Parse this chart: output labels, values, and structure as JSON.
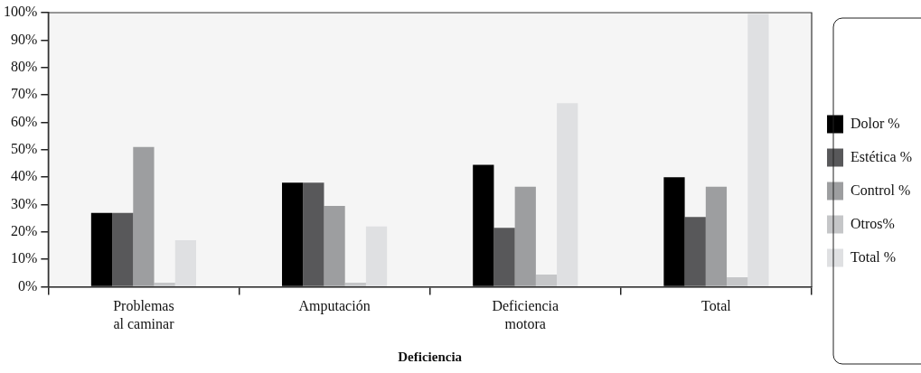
{
  "chart_data": {
    "type": "bar",
    "xlabel": "Deficiencia",
    "categories": [
      "Problemas\nal caminar",
      "Amputación",
      "Deficiencia\nmotora",
      "Total"
    ],
    "series": [
      {
        "name": "Dolor %",
        "color": "#000000",
        "values": [
          27,
          38,
          44.5,
          40
        ]
      },
      {
        "name": "Estética %",
        "color": "#58585a",
        "values": [
          27,
          38,
          21.5,
          25.5
        ]
      },
      {
        "name": "Control %",
        "color": "#9d9ea0",
        "values": [
          51,
          29.5,
          36.5,
          36.5
        ]
      },
      {
        "name": "Otros%",
        "color": "#c5c6c8",
        "values": [
          1.5,
          1.5,
          4.5,
          3.5
        ]
      },
      {
        "name": "Total %",
        "color": "#dfe0e2",
        "values": [
          17,
          22,
          67,
          99.5
        ]
      }
    ],
    "ylim": [
      0,
      100
    ],
    "yticks": [
      {
        "value": 0,
        "label": "0%"
      },
      {
        "value": 10,
        "label": "10%"
      },
      {
        "value": 20,
        "label": "20%"
      },
      {
        "value": 30,
        "label": "30%"
      },
      {
        "value": 40,
        "label": "40%"
      },
      {
        "value": 50,
        "label": "50%"
      },
      {
        "value": 60,
        "label": "60%"
      },
      {
        "value": 70,
        "label": "70%"
      },
      {
        "value": 80,
        "label": "80%"
      },
      {
        "value": 90,
        "label": "90%"
      },
      {
        "value": 100,
        "label": "100%"
      }
    ],
    "grid": false,
    "legend": "right"
  }
}
